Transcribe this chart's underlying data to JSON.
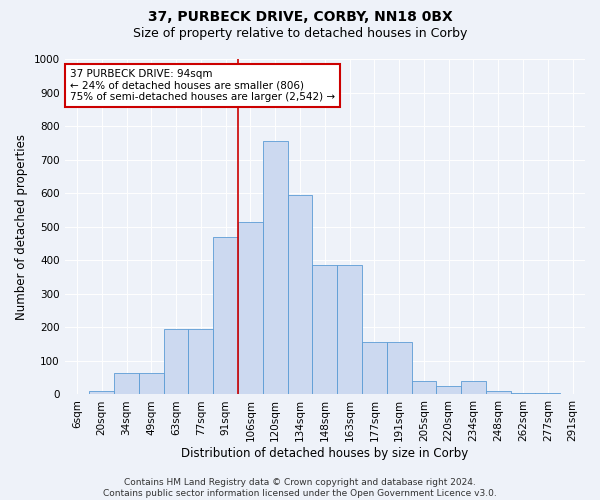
{
  "title": "37, PURBECK DRIVE, CORBY, NN18 0BX",
  "subtitle": "Size of property relative to detached houses in Corby",
  "xlabel": "Distribution of detached houses by size in Corby",
  "ylabel": "Number of detached properties",
  "footer_line1": "Contains HM Land Registry data © Crown copyright and database right 2024.",
  "footer_line2": "Contains public sector information licensed under the Open Government Licence v3.0.",
  "categories": [
    "6sqm",
    "20sqm",
    "34sqm",
    "49sqm",
    "63sqm",
    "77sqm",
    "91sqm",
    "106sqm",
    "120sqm",
    "134sqm",
    "148sqm",
    "163sqm",
    "177sqm",
    "191sqm",
    "205sqm",
    "220sqm",
    "234sqm",
    "248sqm",
    "262sqm",
    "277sqm",
    "291sqm"
  ],
  "bar_heights": [
    0,
    10,
    65,
    65,
    195,
    195,
    470,
    515,
    755,
    595,
    385,
    385,
    155,
    155,
    40,
    25,
    40,
    10,
    5,
    3,
    2
  ],
  "bar_color": "#ccd9f0",
  "bar_edge_color": "#5b9bd5",
  "background_color": "#eef2f9",
  "ylim": [
    0,
    1000
  ],
  "yticks": [
    0,
    100,
    200,
    300,
    400,
    500,
    600,
    700,
    800,
    900,
    1000
  ],
  "red_line_x": 6.5,
  "annotation_title": "37 PURBECK DRIVE: 94sqm",
  "annotation_line2": "← 24% of detached houses are smaller (806)",
  "annotation_line3": "75% of semi-detached houses are larger (2,542) →",
  "annotation_box_facecolor": "#ffffff",
  "annotation_border_color": "#cc0000",
  "title_fontsize": 10,
  "subtitle_fontsize": 9,
  "axis_label_fontsize": 8.5,
  "tick_fontsize": 7.5,
  "footer_fontsize": 6.5,
  "annotation_fontsize": 7.5
}
